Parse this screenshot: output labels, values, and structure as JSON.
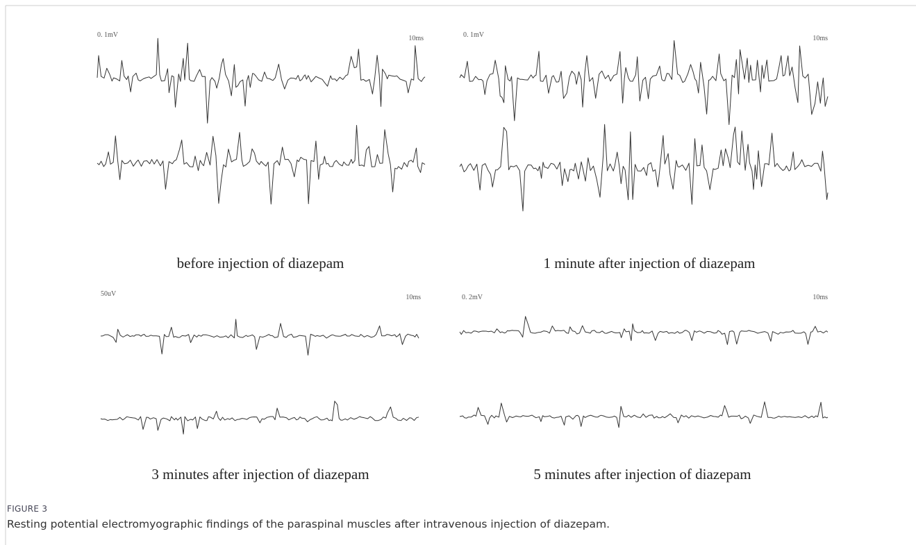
{
  "panels": [
    {
      "scale": "0. 1mV",
      "time": "10ms",
      "caption": "before injection of diazepam"
    },
    {
      "scale": "0. 1mV",
      "time": "10ms",
      "caption": "1 minute after injection of diazepam"
    },
    {
      "scale": "50uV",
      "time": "10ms",
      "caption": "3 minutes after injection of diazepam"
    },
    {
      "scale": "0. 2mV",
      "time": "10ms",
      "caption": "5 minutes after injection of diazepam"
    }
  ],
  "figure": {
    "label": "FIGURE 3",
    "caption": "Resting potential electromyographic findings of the paraspinal muscles after intravenous injection of diazepam."
  }
}
